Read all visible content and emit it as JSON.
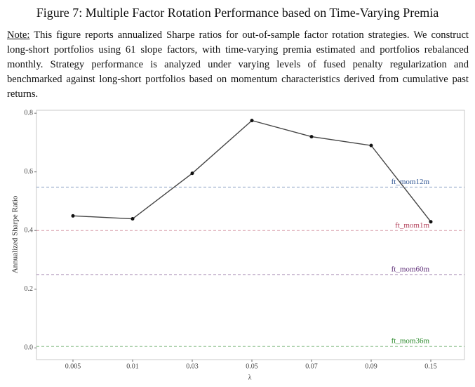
{
  "figure": {
    "title": "Figure 7: Multiple Factor Rotation Performance based on Time-Varying Premia",
    "note_label": "Note:",
    "note": "This figure reports annualized Sharpe ratios for out-of-sample factor rotation strategies. We construct long-short portfolios using 61 slope factors, with time-varying premia estimated and portfolios rebalanced monthly. Strategy performance is analyzed under varying levels of fused penalty regularization and benchmarked against long-short portfolios based on momentum characteristics derived from cumulative past returns."
  },
  "chart_data": {
    "type": "line",
    "x_label": "λ",
    "y_label": "Annualized Sharpe Ratio",
    "categories": [
      "0.005",
      "0.01",
      "0.03",
      "0.05",
      "0.07",
      "0.09",
      "0.15"
    ],
    "values": [
      0.45,
      0.44,
      0.595,
      0.775,
      0.72,
      0.69,
      0.43
    ],
    "color": "#444444",
    "ylim": [
      -0.04,
      0.81
    ],
    "yticks": [
      {
        "value": 0,
        "label": "0.0"
      },
      {
        "value": 0.2,
        "label": "0.2"
      },
      {
        "value": 0.4,
        "label": "0.4"
      },
      {
        "value": 0.6,
        "label": "0.6"
      },
      {
        "value": 0.8,
        "label": "0.8"
      }
    ],
    "reference_lines": [
      {
        "name": "ft_mom12m",
        "value": 0.548,
        "color": "#2f5593"
      },
      {
        "name": "ft_mom1m",
        "value": 0.4,
        "color": "#b2405a"
      },
      {
        "name": "ft_mom60m",
        "value": 0.25,
        "color": "#5e2e78"
      },
      {
        "name": "ft_mom36m",
        "value": 0.005,
        "color": "#2e8b2e"
      }
    ]
  }
}
